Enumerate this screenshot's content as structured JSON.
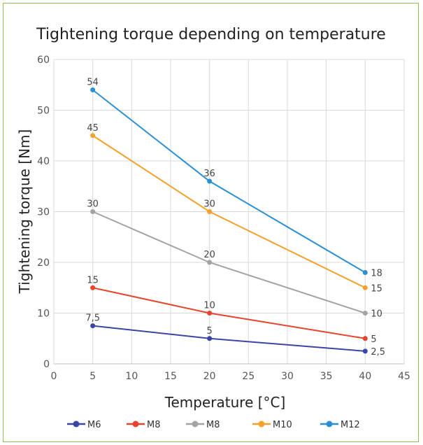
{
  "chart_data": {
    "type": "line",
    "title": "Tightening torque depending on temperature",
    "xlabel": "Temperature [°C]",
    "ylabel": "Tightening torque [Nm]",
    "xlim": [
      0,
      45
    ],
    "ylim": [
      0,
      60
    ],
    "xticks": [
      "0",
      "5",
      "10",
      "15",
      "20",
      "25",
      "30",
      "35",
      "40",
      "45"
    ],
    "yticks": [
      "0",
      "10",
      "20",
      "30",
      "40",
      "50",
      "60"
    ],
    "grid": true,
    "legend_position": "bottom",
    "x": [
      5,
      20,
      40
    ],
    "series": [
      {
        "name": "M6",
        "color": "#3a45a8",
        "values": [
          7.5,
          5,
          2.5
        ],
        "labels": [
          "7,5",
          "5",
          "2,5"
        ]
      },
      {
        "name": "M8",
        "color": "#e8432b",
        "values": [
          15,
          10,
          5
        ],
        "labels": [
          "15",
          "10",
          "5"
        ]
      },
      {
        "name": "M8",
        "color": "#a3a3a3",
        "values": [
          30,
          20,
          10
        ],
        "labels": [
          "30",
          "20",
          "10"
        ]
      },
      {
        "name": "M10",
        "color": "#f5a02a",
        "values": [
          45,
          30,
          15
        ],
        "labels": [
          "45",
          "30",
          "15"
        ]
      },
      {
        "name": "M12",
        "color": "#2a8fd4",
        "values": [
          54,
          36,
          18
        ],
        "labels": [
          "54",
          "36",
          "18"
        ]
      }
    ]
  }
}
